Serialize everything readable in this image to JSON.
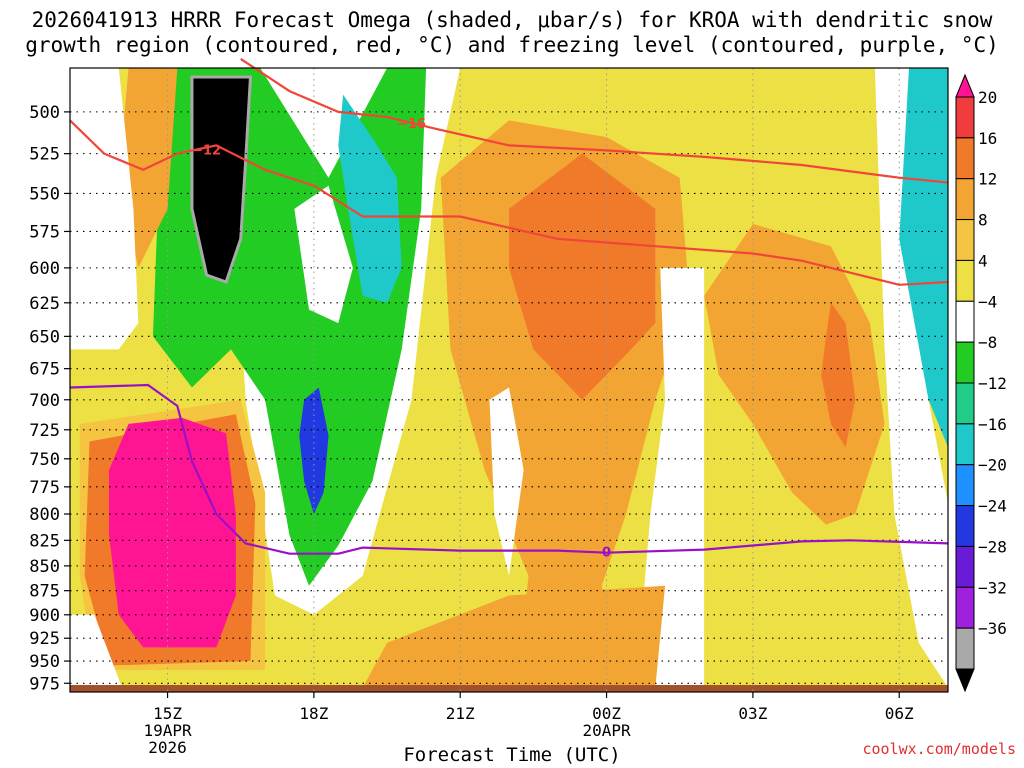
{
  "title_line1": "2026041913 HRRR Forecast Omega (shaded, μbar/s) for KROA with dendritic snow",
  "title_line2": "growth region (contoured, red, °C) and freezing level (contoured, purple, °C)",
  "credit": "coolwx.com/models",
  "chart_data": {
    "type": "heatmap",
    "xlabel": "Forecast Time (UTC)",
    "ylabel": "",
    "x_ticks": [
      {
        "hour": 15,
        "label": "15Z",
        "sub1": "19APR",
        "sub2": "2026"
      },
      {
        "hour": 18,
        "label": "18Z",
        "sub1": "",
        "sub2": ""
      },
      {
        "hour": 21,
        "label": "21Z",
        "sub1": "",
        "sub2": ""
      },
      {
        "hour": 24,
        "label": "00Z",
        "sub1": "20APR",
        "sub2": ""
      },
      {
        "hour": 27,
        "label": "03Z",
        "sub1": "",
        "sub2": ""
      },
      {
        "hour": 30,
        "label": "06Z",
        "sub1": "",
        "sub2": ""
      }
    ],
    "xlim_hours": [
      13,
      31
    ],
    "y_ticks": [
      500,
      525,
      550,
      575,
      600,
      625,
      650,
      675,
      700,
      725,
      750,
      775,
      800,
      825,
      850,
      875,
      900,
      925,
      950,
      975
    ],
    "ylim_hPa": [
      475,
      985
    ],
    "y_scale": "log-pressure",
    "grid": true,
    "colorbar": {
      "labels": [
        "20",
        "16",
        "12",
        "8",
        "4",
        "−4",
        "−8",
        "−12",
        "−16",
        "−20",
        "−24",
        "−28",
        "−32",
        "−36"
      ],
      "colors": [
        "#ff1493",
        "#f03c3c",
        "#f07a2a",
        "#f2a533",
        "#f5c542",
        "#ede045",
        "#ffffff",
        "#22cc22",
        "#22cc88",
        "#20c9c9",
        "#1e90ff",
        "#2238e0",
        "#6a1bd8",
        "#a020e0",
        "#a9a9a9",
        "#000000"
      ]
    },
    "shading_regions": [
      {
        "level": 20,
        "color": "#ff1493",
        "points": [
          [
            13.8,
            760
          ],
          [
            14.2,
            720
          ],
          [
            15.3,
            715
          ],
          [
            16.2,
            728
          ],
          [
            16.4,
            800
          ],
          [
            16.4,
            880
          ],
          [
            16.0,
            935
          ],
          [
            14.5,
            935
          ],
          [
            14.0,
            900
          ],
          [
            13.8,
            820
          ]
        ]
      },
      {
        "level": 12,
        "color": "#f07a2a",
        "points": [
          [
            22.0,
            560
          ],
          [
            23.5,
            525
          ],
          [
            25.0,
            560
          ],
          [
            25.0,
            640
          ],
          [
            24.5,
            660
          ],
          [
            23.5,
            700
          ],
          [
            22.5,
            660
          ],
          [
            22.0,
            600
          ]
        ]
      },
      {
        "level": 12,
        "color": "#f07a2a",
        "points": [
          [
            28.6,
            625
          ],
          [
            28.9,
            640
          ],
          [
            29.1,
            700
          ],
          [
            28.9,
            740
          ],
          [
            28.6,
            720
          ],
          [
            28.4,
            680
          ],
          [
            28.5,
            650
          ]
        ]
      },
      {
        "level": -12,
        "color": "#20c9c9",
        "points": [
          [
            18.6,
            490
          ],
          [
            19.3,
            520
          ],
          [
            19.7,
            540
          ],
          [
            19.8,
            600
          ],
          [
            19.5,
            625
          ],
          [
            19.0,
            620
          ],
          [
            18.7,
            560
          ],
          [
            18.5,
            520
          ]
        ]
      },
      {
        "level": -24,
        "color": "#2238e0",
        "points": [
          [
            17.8,
            700
          ],
          [
            18.1,
            690
          ],
          [
            18.3,
            730
          ],
          [
            18.2,
            780
          ],
          [
            18.0,
            800
          ],
          [
            17.8,
            770
          ],
          [
            17.7,
            730
          ]
        ]
      },
      {
        "level": -36,
        "color": "#000000",
        "points": [
          [
            15.5,
            480
          ],
          [
            16.7,
            480
          ],
          [
            16.6,
            530
          ],
          [
            16.5,
            580
          ],
          [
            16.2,
            610
          ],
          [
            15.8,
            605
          ],
          [
            15.5,
            560
          ],
          [
            15.5,
            510
          ]
        ]
      }
    ],
    "dgz_contours": [
      {
        "label": "−12",
        "points": [
          [
            13,
            505
          ],
          [
            13.7,
            525
          ],
          [
            14.5,
            535
          ],
          [
            15.2,
            525
          ],
          [
            16,
            520
          ],
          [
            17,
            535
          ],
          [
            18,
            545
          ],
          [
            19,
            565
          ],
          [
            21,
            565
          ],
          [
            23,
            580
          ],
          [
            25,
            585
          ],
          [
            27,
            590
          ],
          [
            28,
            595
          ],
          [
            30,
            612
          ],
          [
            31,
            610
          ]
        ]
      },
      {
        "label": "−16",
        "points": [
          [
            16.5,
            470
          ],
          [
            17.5,
            488
          ],
          [
            18.5,
            500
          ],
          [
            19.5,
            503
          ],
          [
            20.5,
            510
          ],
          [
            22,
            520
          ],
          [
            24,
            523
          ],
          [
            26,
            527
          ],
          [
            28,
            532
          ],
          [
            30,
            540
          ],
          [
            31,
            543
          ]
        ]
      }
    ],
    "freezing_level": {
      "label": "0",
      "points": [
        [
          13,
          690
        ],
        [
          14.6,
          688
        ],
        [
          15.2,
          705
        ],
        [
          15.5,
          752
        ],
        [
          16.0,
          800
        ],
        [
          16.6,
          828
        ],
        [
          17.5,
          838
        ],
        [
          18.5,
          838
        ],
        [
          19.0,
          832
        ],
        [
          21,
          835
        ],
        [
          23,
          835
        ],
        [
          24,
          837
        ],
        [
          26,
          834
        ],
        [
          27,
          830
        ],
        [
          28,
          826
        ],
        [
          29,
          825
        ],
        [
          31,
          828
        ]
      ]
    }
  }
}
